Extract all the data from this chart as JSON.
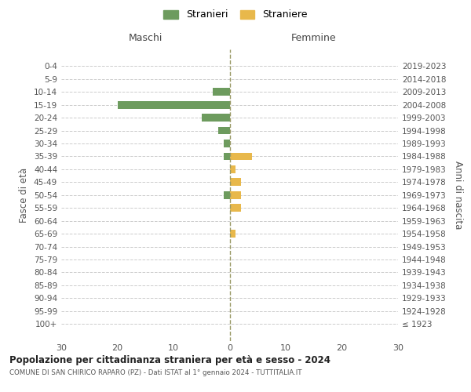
{
  "age_groups": [
    "100+",
    "95-99",
    "90-94",
    "85-89",
    "80-84",
    "75-79",
    "70-74",
    "65-69",
    "60-64",
    "55-59",
    "50-54",
    "45-49",
    "40-44",
    "35-39",
    "30-34",
    "25-29",
    "20-24",
    "15-19",
    "10-14",
    "5-9",
    "0-4"
  ],
  "birth_years": [
    "≤ 1923",
    "1924-1928",
    "1929-1933",
    "1934-1938",
    "1939-1943",
    "1944-1948",
    "1949-1953",
    "1954-1958",
    "1959-1963",
    "1964-1968",
    "1969-1973",
    "1974-1978",
    "1979-1983",
    "1984-1988",
    "1989-1993",
    "1994-1998",
    "1999-2003",
    "2004-2008",
    "2009-2013",
    "2014-2018",
    "2019-2023"
  ],
  "maschi_stranieri": [
    0,
    0,
    0,
    0,
    0,
    0,
    0,
    0,
    0,
    0,
    1,
    0,
    0,
    1,
    1,
    2,
    5,
    20,
    3,
    0,
    0
  ],
  "femmine_straniere": [
    0,
    0,
    0,
    0,
    0,
    0,
    0,
    1,
    0,
    2,
    2,
    2,
    1,
    4,
    0,
    0,
    0,
    0,
    0,
    0,
    0
  ],
  "color_maschi": "#6d9b5e",
  "color_femmine": "#e8b84b",
  "title": "Popolazione per cittadinanza straniera per età e sesso - 2024",
  "subtitle": "COMUNE DI SAN CHIRICO RAPARO (PZ) - Dati ISTAT al 1° gennaio 2024 - TUTTITALIA.IT",
  "ylabel_left": "Fasce di età",
  "ylabel_right": "Anni di nascita",
  "xlabel_maschi": "Maschi",
  "xlabel_femmine": "Femmine",
  "legend_maschi": "Stranieri",
  "legend_femmine": "Straniere",
  "xlim": 30,
  "background_color": "#ffffff",
  "grid_color": "#cccccc"
}
